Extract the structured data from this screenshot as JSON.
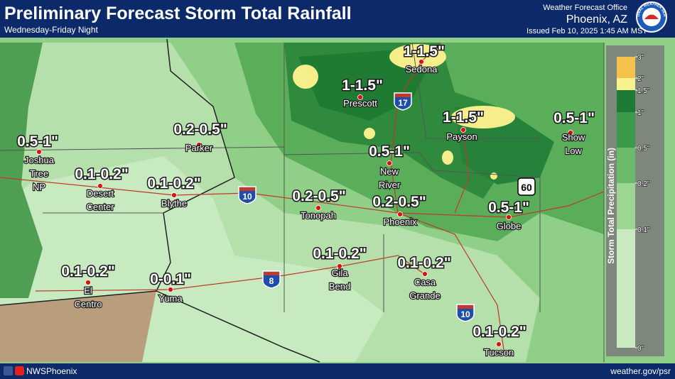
{
  "header": {
    "title": "Preliminary Forecast Storm Total Rainfall",
    "subtitle": "Wednesday-Friday Night",
    "office": "Weather Forecast Office",
    "office_city": "Phoenix, AZ",
    "issued": "Issued Feb 10, 2025 1:45 AM MST",
    "logo": "NATIONAL WEATHER SERVICE"
  },
  "footer": {
    "social": "NWSPhoenix",
    "url": "weather.gov/psr"
  },
  "legend": {
    "title": "Storm Total Precipitation (in)",
    "labels": [
      "3\"",
      "2\"",
      "1.5\"",
      "1\"",
      "0.5\"",
      "0.2\"",
      "0.1\"",
      "0\""
    ]
  },
  "highways": [
    "17",
    "10",
    "8",
    "10",
    "60"
  ],
  "places": [
    {
      "amount": "1-1.5\"",
      "name": [
        "Sedona"
      ]
    },
    {
      "amount": "1-1.5\"",
      "name": [
        "Prescott"
      ]
    },
    {
      "amount": "1-1.5\"",
      "name": [
        "Payson"
      ]
    },
    {
      "amount": "0.5-1\"",
      "name": [
        "Show",
        "Low"
      ]
    },
    {
      "amount": "0.2-0.5\"",
      "name": [
        "Parker"
      ]
    },
    {
      "amount": "0.5-1\"",
      "name": [
        "Joshua",
        "Tree",
        "NP"
      ]
    },
    {
      "amount": "0.5-1\"",
      "name": [
        "New",
        "River"
      ]
    },
    {
      "amount": "0.1-0.2\"",
      "name": [
        "Desert",
        "Center"
      ]
    },
    {
      "amount": "0.1-0.2\"",
      "name": [
        "Blythe"
      ]
    },
    {
      "amount": "0.2-0.5\"",
      "name": [
        "Tonopah"
      ]
    },
    {
      "amount": "0.2-0.5\"",
      "name": [
        "Phoenix"
      ]
    },
    {
      "amount": "0.5-1\"",
      "name": [
        "Globe"
      ]
    },
    {
      "amount": "0.1-0.2\"",
      "name": [
        "Gila",
        "Bend"
      ]
    },
    {
      "amount": "0.1-0.2\"",
      "name": [
        "Casa",
        "Grande"
      ]
    },
    {
      "amount": "0.1-0.2\"",
      "name": [
        "El",
        "Centro"
      ]
    },
    {
      "amount": "0-0.1\"",
      "name": [
        "Yuma"
      ]
    },
    {
      "amount": "0.1-0.2\"",
      "name": [
        "Tucson"
      ]
    }
  ]
}
